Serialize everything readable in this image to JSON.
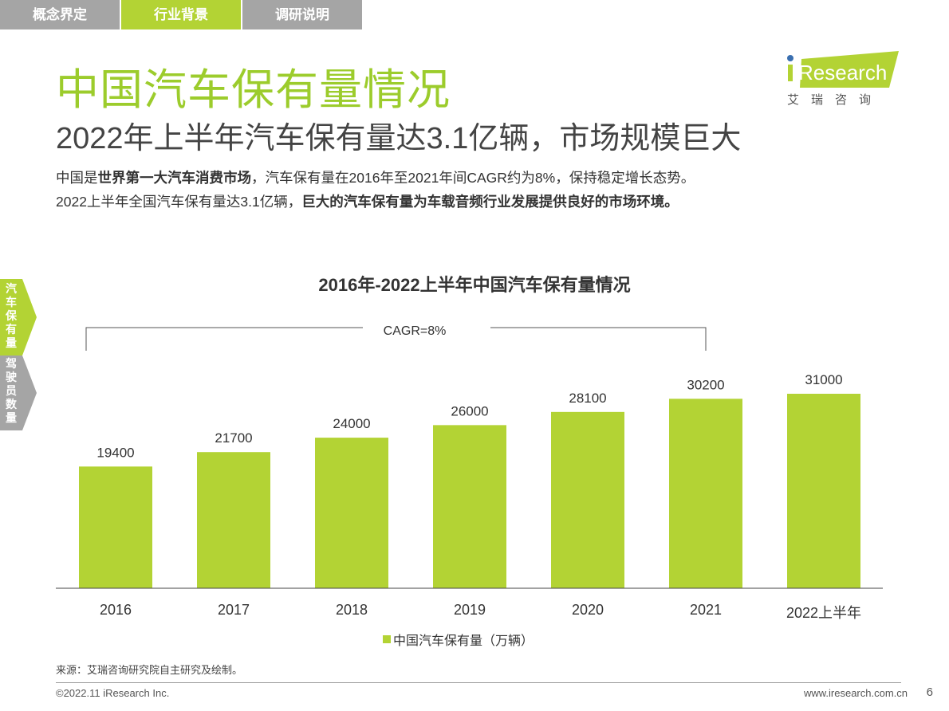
{
  "tabs": [
    {
      "label": "概念界定"
    },
    {
      "label": "行业背景"
    },
    {
      "label": "调研说明"
    }
  ],
  "title": "中国汽车保有量情况",
  "subtitle": "2022年上半年汽车保有量达3.1亿辆，市场规模巨大",
  "desc": {
    "l1a": "中国是",
    "l1b": "世界第一大汽车消费市场",
    "l1c": "，汽车保有量在2016年至2021年间CAGR约为8%，保持稳定增长态势。",
    "l2a": "2022上半年全国汽车保有量达3.1亿辆，",
    "l2b": "巨大的汽车保有量为车载音频行业发展提供良好的市场环境。"
  },
  "logo": {
    "text": "iResearch",
    "cn": "艾 瑞 咨 询"
  },
  "side_tabs": [
    {
      "label": "汽车保有量"
    },
    {
      "label": "驾驶员数量"
    }
  ],
  "colors": {
    "accent": "#b3d334",
    "gray": "#a5a5a5",
    "logo_dot": "#3a6fb0"
  },
  "chart_data": {
    "type": "bar",
    "title": "2016年-2022上半年中国汽车保有量情况",
    "categories": [
      "2016",
      "2017",
      "2018",
      "2019",
      "2020",
      "2021",
      "2022上半年"
    ],
    "series": [
      {
        "name": "中国汽车保有量（万辆）",
        "values": [
          19400,
          21700,
          24000,
          26000,
          28100,
          30200,
          31000
        ]
      }
    ],
    "annotation": "CAGR=8%",
    "grid": false,
    "legend": "bottom"
  },
  "source": "来源：艾瑞咨询研究院自主研究及绘制。",
  "footer": {
    "copyright": "©2022.11 iResearch Inc.",
    "site": "www.iresearch.com.cn",
    "page": "6"
  }
}
